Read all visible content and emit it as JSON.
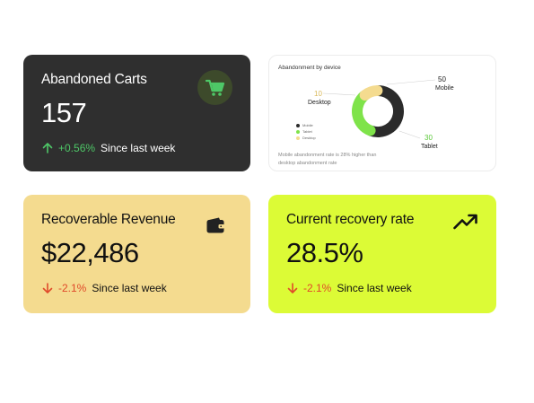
{
  "cards": {
    "abandoned": {
      "title": "Abandoned Carts",
      "value": "157",
      "change": "+0.56%",
      "period": "Since last week",
      "icon": "shopping-cart-icon",
      "accent": "#4ec767"
    },
    "revenue": {
      "title": "Recoverable Revenue",
      "value": "$22,486",
      "change": "-2.1%",
      "period": "Since last week",
      "icon": "wallet-icon"
    },
    "recovery": {
      "title": "Current recovery rate",
      "value": "28.5%",
      "change": "-2.1%",
      "period": "Since last week",
      "icon": "trending-up-icon"
    }
  },
  "chart_data": {
    "type": "pie",
    "title": "Abandonment by device",
    "categories": [
      "Mobile",
      "Tablet",
      "Desktop"
    ],
    "values": [
      50,
      30,
      10
    ],
    "colors": [
      "#2b2b2b",
      "#7fe34a",
      "#f4db8f"
    ],
    "legend": [
      "Mobile",
      "Tablet",
      "Desktop"
    ],
    "legend_position": "left",
    "annotation": "Mobile abandonment rate is 28% higher than desktop abandonment rate"
  }
}
